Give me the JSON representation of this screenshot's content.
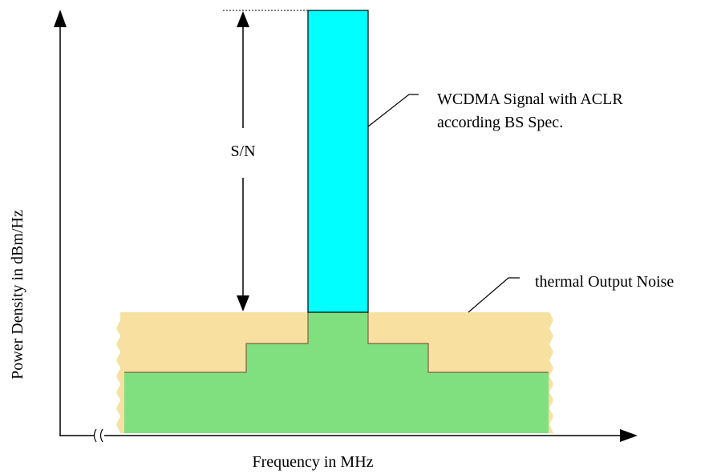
{
  "diagram": {
    "y_axis_label": "Power Density in dBm/Hz",
    "x_axis_label": "Frequency in MHz",
    "sn_label": "S/N",
    "signal_label_line1": "WCDMA Signal with ACLR",
    "signal_label_line2": "according BS Spec.",
    "noise_label": "thermal Output Noise"
  },
  "colors": {
    "signal": "#00ffff",
    "acl_region": "#80e080",
    "noise_floor": "#f8e0a0",
    "axis": "#000000"
  }
}
